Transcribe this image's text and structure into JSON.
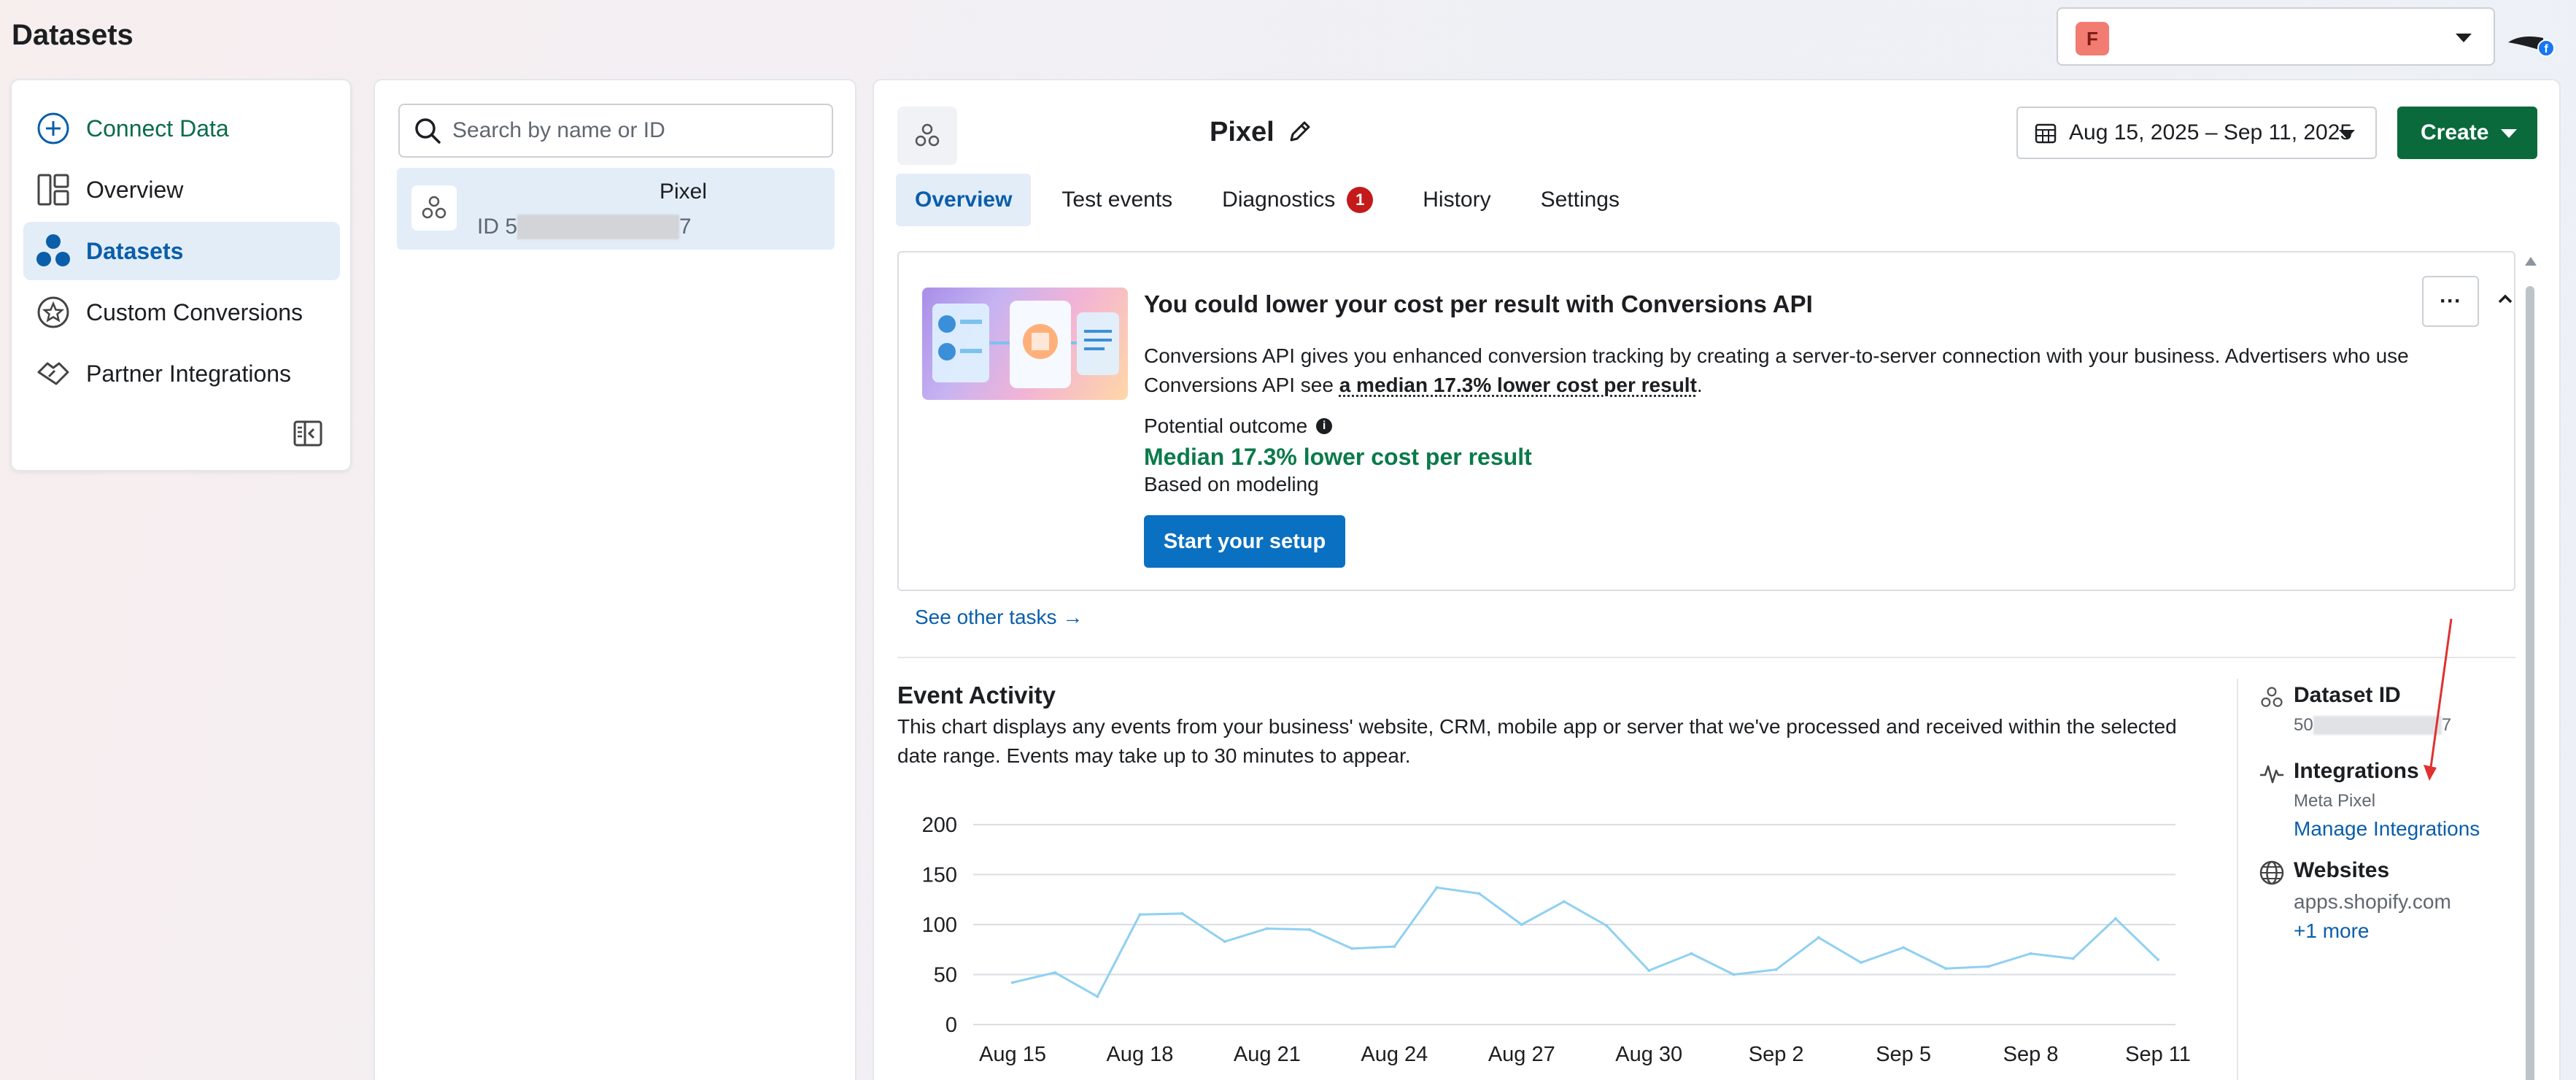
{
  "page": {
    "title": "Datasets"
  },
  "account": {
    "badge_letter": "F"
  },
  "nav": {
    "items": [
      {
        "label": "Connect Data",
        "icon": "plus-circle-icon"
      },
      {
        "label": "Overview",
        "icon": "layout-icon"
      },
      {
        "label": "Datasets",
        "icon": "datasets-icon"
      },
      {
        "label": "Custom Conversions",
        "icon": "star-badge-icon"
      },
      {
        "label": "Partner Integrations",
        "icon": "handshake-icon"
      }
    ]
  },
  "list": {
    "search_placeholder": "Search by name or ID",
    "dataset": {
      "name": "Pixel",
      "id_prefix": "ID 5",
      "id_suffix": "7"
    }
  },
  "header": {
    "title": "Pixel",
    "date_range": "Aug 15, 2025 – Sep 11, 2025",
    "create_label": "Create"
  },
  "tabs": [
    {
      "label": "Overview",
      "active": true
    },
    {
      "label": "Test events"
    },
    {
      "label": "Diagnostics",
      "badge": "1"
    },
    {
      "label": "History"
    },
    {
      "label": "Settings"
    }
  ],
  "promo": {
    "title": "You could lower your cost per result with Conversions API",
    "desc_part1": "Conversions API gives you enhanced conversion tracking by creating a server-to-server connection with your business. Advertisers who use Conversions API see ",
    "desc_link": "a median 17.3% lower cost per result",
    "desc_end": ".",
    "outcome_label": "Potential outcome",
    "outcome_value": "Median 17.3% lower cost per result",
    "outcome_note": "Based on modeling",
    "cta": "Start your setup",
    "more": "···"
  },
  "see_other": "See other tasks →",
  "event_activity": {
    "title": "Event Activity",
    "description": "This chart displays any events from your business' website, CRM, mobile app or server that we've processed and received within the selected date range. Events may take up to 30 minutes to appear."
  },
  "chart_data": {
    "type": "line",
    "x_tick_labels": [
      "Aug 15",
      "Aug 18",
      "Aug 21",
      "Aug 24",
      "Aug 27",
      "Aug 30",
      "Sep 2",
      "Sep 5",
      "Sep 8",
      "Sep 11"
    ],
    "y_ticks": [
      0,
      50,
      100,
      150,
      200
    ],
    "ylim": [
      0,
      200
    ],
    "series": [
      {
        "x": [
          "Aug 15",
          "Aug 16",
          "Aug 17",
          "Aug 18",
          "Aug 19",
          "Aug 20",
          "Aug 21",
          "Aug 22",
          "Aug 23",
          "Aug 24",
          "Aug 25",
          "Aug 26",
          "Aug 27",
          "Aug 28",
          "Aug 29",
          "Aug 30",
          "Aug 31",
          "Sep 1",
          "Sep 2",
          "Sep 3",
          "Sep 4",
          "Sep 5",
          "Sep 6",
          "Sep 7",
          "Sep 8",
          "Sep 9",
          "Sep 10",
          "Sep 11"
        ],
        "values": [
          42,
          52,
          28,
          110,
          111,
          83,
          96,
          95,
          76,
          78,
          137,
          131,
          100,
          123,
          99,
          54,
          71,
          50,
          55,
          87,
          62,
          77,
          56,
          58,
          71,
          66,
          106,
          65
        ],
        "color": "#8fd0f2"
      }
    ],
    "grid": true,
    "line_color": "#8fd0f2"
  },
  "side": {
    "dataset_id_title": "Dataset ID",
    "dataset_id_prefix": "50",
    "dataset_id_suffix": "7",
    "integrations_title": "Integrations",
    "integrations_sub": "Meta Pixel",
    "integrations_link": "Manage Integrations",
    "websites_title": "Websites",
    "websites_value": "apps.shopify.com",
    "websites_more": "+1 more"
  },
  "colors": {
    "accent": "#0a5eaa",
    "create": "#0a6a3c",
    "badge": "#c41a1a",
    "positive": "#0a7a4a"
  }
}
